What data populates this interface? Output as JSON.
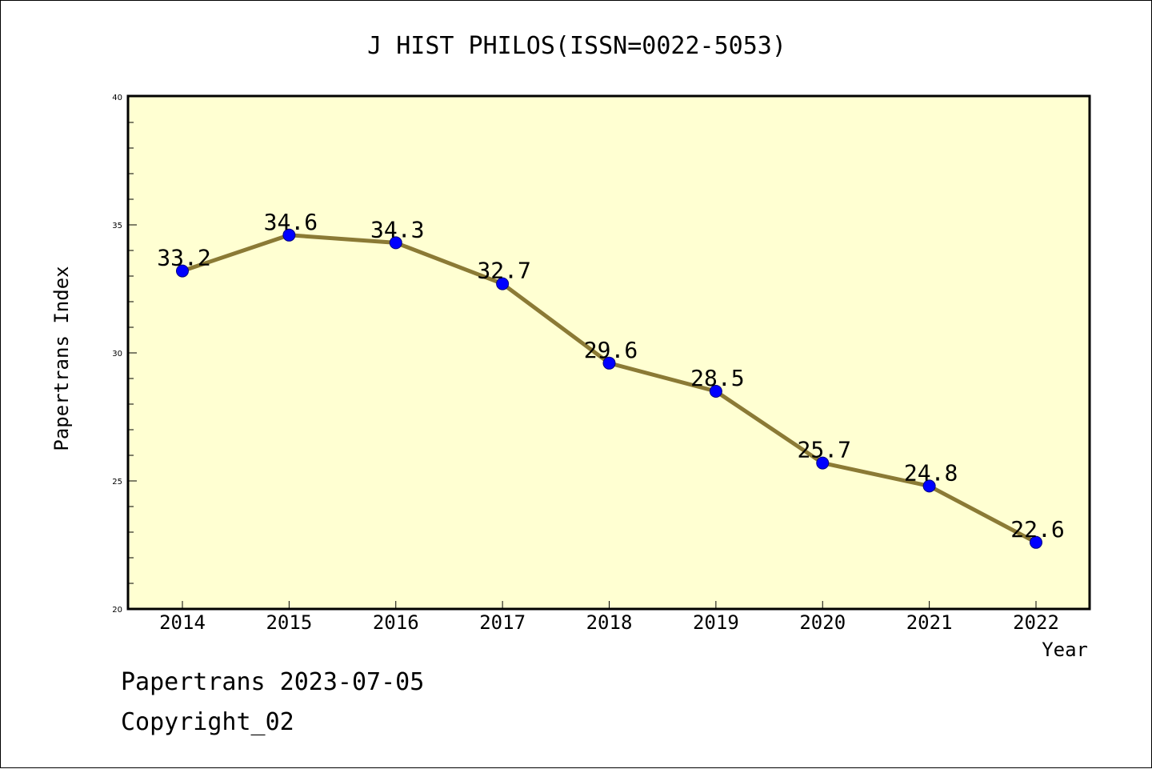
{
  "chart_data": {
    "type": "line",
    "title": "J HIST PHILOS(ISSN=0022-5053)",
    "xlabel": "Year",
    "ylabel": "Papertrans Index",
    "x": [
      "2014",
      "2015",
      "2016",
      "2017",
      "2018",
      "2019",
      "2020",
      "2021",
      "2022"
    ],
    "series": [
      {
        "values": [
          33.2,
          34.6,
          34.3,
          32.7,
          29.6,
          28.5,
          25.7,
          24.8,
          22.6
        ]
      }
    ],
    "data_labels": [
      "33.2",
      "34.6",
      "34.3",
      "32.7",
      "29.6",
      "28.5",
      "25.7",
      "24.8",
      "22.6"
    ],
    "ylim": [
      20,
      40
    ],
    "yticks": [
      "20",
      "25",
      "30",
      "35",
      "40"
    ],
    "grid": false,
    "legend": "none",
    "colors": {
      "plot_background": "#ffffd2",
      "line": "#8b7a35",
      "marker": "#0000ff"
    }
  },
  "footer": {
    "line1": "Papertrans 2023-07-05",
    "line2": "Copyright_02"
  }
}
